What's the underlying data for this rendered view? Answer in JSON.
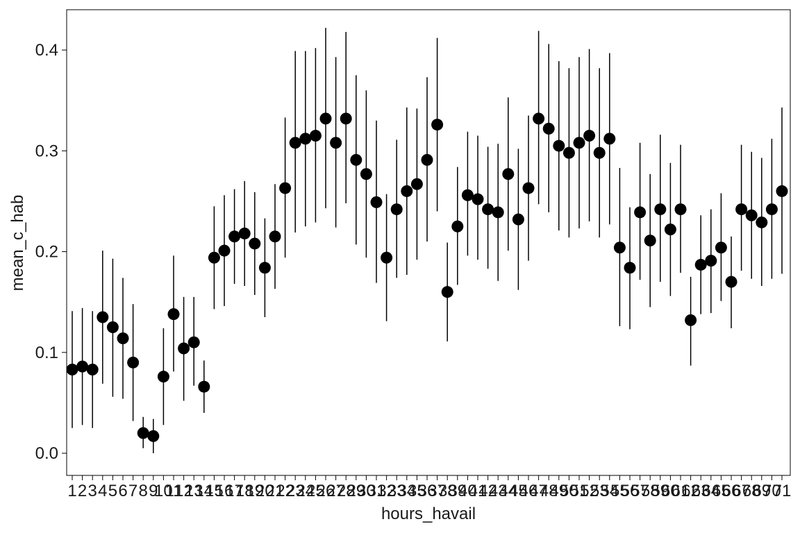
{
  "chart_data": {
    "type": "scatter",
    "title": "",
    "xlabel": "hours_havail",
    "ylabel": "mean_c_hab",
    "ylim": [
      -0.022,
      0.44
    ],
    "yticks": [
      0.0,
      0.1,
      0.2,
      0.3,
      0.4
    ],
    "ytick_labels": [
      "0.0",
      "0.1",
      "0.2",
      "0.3",
      "0.4"
    ],
    "grid": false,
    "legend": "none",
    "x": [
      1,
      2,
      3,
      4,
      5,
      6,
      7,
      8,
      9,
      10,
      11,
      12,
      13,
      14,
      15,
      16,
      17,
      18,
      19,
      20,
      21,
      22,
      23,
      24,
      25,
      26,
      27,
      28,
      29,
      30,
      31,
      32,
      33,
      34,
      35,
      36,
      37,
      38,
      39,
      40,
      41,
      42,
      43,
      44,
      45,
      46,
      47,
      48,
      49,
      50,
      51,
      52,
      53,
      54,
      55,
      56,
      57,
      58,
      59,
      60,
      61,
      62,
      63,
      64,
      65,
      66,
      67,
      68,
      69,
      70,
      71
    ],
    "x_tick_labels": [
      "1",
      "2",
      "3",
      "4",
      "5",
      "6",
      "7",
      "8",
      "9",
      "10",
      "11",
      "12",
      "13",
      "14",
      "15",
      "16",
      "17",
      "18",
      "19",
      "20",
      "21",
      "22",
      "23",
      "24",
      "25",
      "26",
      "27",
      "28",
      "29",
      "30",
      "31",
      "32",
      "33",
      "34",
      "35",
      "36",
      "37",
      "38",
      "39",
      "40",
      "41",
      "42",
      "43",
      "44",
      "45",
      "46",
      "47",
      "48",
      "49",
      "50",
      "51",
      "52",
      "53",
      "54",
      "55",
      "56",
      "57",
      "58",
      "59",
      "60",
      "61",
      "62",
      "63",
      "64",
      "65",
      "66",
      "67",
      "68",
      "69",
      "70",
      "71"
    ],
    "y": [
      0.083,
      0.086,
      0.083,
      0.135,
      0.125,
      0.114,
      0.09,
      0.02,
      0.017,
      0.076,
      0.138,
      0.104,
      0.11,
      0.066,
      0.194,
      0.201,
      0.215,
      0.218,
      0.208,
      0.184,
      0.215,
      0.263,
      0.308,
      0.312,
      0.315,
      0.332,
      0.308,
      0.332,
      0.291,
      0.277,
      0.249,
      0.194,
      0.242,
      0.26,
      0.267,
      0.291,
      0.326,
      0.16,
      0.225,
      0.256,
      0.252,
      0.242,
      0.239,
      0.277,
      0.232,
      0.263,
      0.332,
      0.322,
      0.305,
      0.298,
      0.308,
      0.315,
      0.298,
      0.312,
      0.204,
      0.184,
      0.239,
      0.211,
      0.242,
      0.222,
      0.242,
      0.132,
      0.187,
      0.191,
      0.204,
      0.17,
      0.242,
      0.236,
      0.229,
      0.242,
      0.26
    ],
    "y_lower": [
      0.025,
      0.028,
      0.025,
      0.069,
      0.056,
      0.054,
      0.032,
      0.005,
      0.0,
      0.028,
      0.081,
      0.052,
      0.067,
      0.04,
      0.143,
      0.146,
      0.168,
      0.166,
      0.157,
      0.135,
      0.163,
      0.194,
      0.219,
      0.225,
      0.229,
      0.243,
      0.224,
      0.248,
      0.207,
      0.194,
      0.169,
      0.131,
      0.174,
      0.177,
      0.192,
      0.21,
      0.24,
      0.111,
      0.167,
      0.196,
      0.192,
      0.183,
      0.171,
      0.201,
      0.162,
      0.191,
      0.247,
      0.239,
      0.221,
      0.214,
      0.223,
      0.23,
      0.214,
      0.227,
      0.126,
      0.123,
      0.172,
      0.145,
      0.17,
      0.156,
      0.179,
      0.087,
      0.138,
      0.139,
      0.151,
      0.124,
      0.181,
      0.173,
      0.166,
      0.173,
      0.178
    ],
    "y_upper": [
      0.141,
      0.144,
      0.141,
      0.201,
      0.193,
      0.174,
      0.148,
      0.036,
      0.034,
      0.124,
      0.196,
      0.155,
      0.155,
      0.092,
      0.245,
      0.256,
      0.262,
      0.27,
      0.259,
      0.233,
      0.267,
      0.333,
      0.399,
      0.399,
      0.402,
      0.422,
      0.393,
      0.418,
      0.375,
      0.36,
      0.33,
      0.257,
      0.311,
      0.343,
      0.342,
      0.373,
      0.412,
      0.209,
      0.284,
      0.319,
      0.315,
      0.304,
      0.307,
      0.353,
      0.302,
      0.335,
      0.419,
      0.406,
      0.389,
      0.382,
      0.393,
      0.401,
      0.382,
      0.397,
      0.283,
      0.244,
      0.308,
      0.277,
      0.316,
      0.288,
      0.306,
      0.175,
      0.236,
      0.242,
      0.258,
      0.215,
      0.306,
      0.299,
      0.293,
      0.312,
      0.343
    ]
  }
}
